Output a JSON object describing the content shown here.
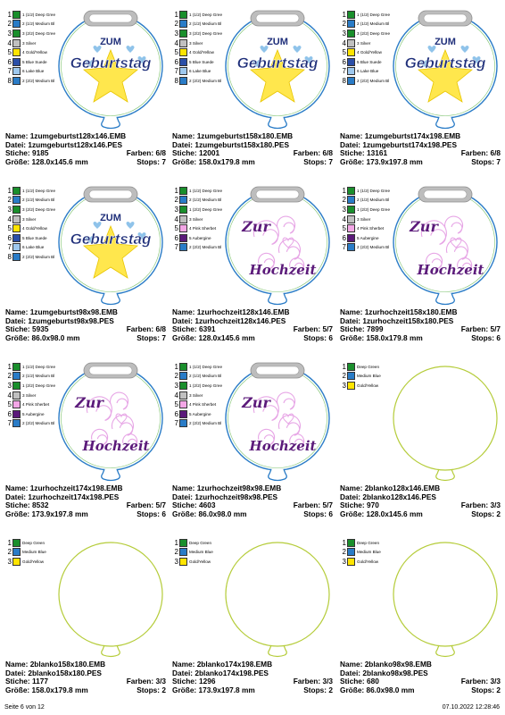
{
  "footer": {
    "page": "Seite 6 von 12",
    "datetime": "07.10.2022 12:28:46"
  },
  "cells": [
    {
      "design": "zum",
      "name": "1zumgeburtst128x146.EMB",
      "datei": "1zumgeburtst128x146.PES",
      "stiche": "9185",
      "farben": "6/8",
      "groesse": "128.0x145.6 mm",
      "stops": "7",
      "colors": [
        {
          "n": "1",
          "c": "#1a8f2c",
          "t": "1 (1/2) Deep Gree"
        },
        {
          "n": "2",
          "c": "#2a7cc7",
          "t": "2 (1/2) Medium Bl"
        },
        {
          "n": "3",
          "c": "#1a8f2c",
          "t": "3 (2/2) Deep Gree"
        },
        {
          "n": "4",
          "c": "#c0c0c0",
          "t": "3 Silver"
        },
        {
          "n": "5",
          "c": "#ffe400",
          "t": "4 Gold/Yellow"
        },
        {
          "n": "6",
          "c": "#2b4fa8",
          "t": "5 Blue Suede"
        },
        {
          "n": "7",
          "c": "#9ec8ee",
          "t": "6 Lake Blue"
        },
        {
          "n": "8",
          "c": "#2a7cc7",
          "t": "2 (2/2) Medium Bl"
        }
      ]
    },
    {
      "design": "zum",
      "name": "1zumgeburtst158x180.EMB",
      "datei": "1zumgeburtst158x180.PES",
      "stiche": "12001",
      "farben": "6/8",
      "groesse": "158.0x179.8 mm",
      "stops": "7",
      "colors": [
        {
          "n": "1",
          "c": "#1a8f2c",
          "t": "1 (1/2) Deep Gree"
        },
        {
          "n": "2",
          "c": "#2a7cc7",
          "t": "2 (1/2) Medium Bl"
        },
        {
          "n": "3",
          "c": "#1a8f2c",
          "t": "3 (2/2) Deep Gree"
        },
        {
          "n": "4",
          "c": "#c0c0c0",
          "t": "3 Silver"
        },
        {
          "n": "5",
          "c": "#ffe400",
          "t": "4 Gold/Yellow"
        },
        {
          "n": "6",
          "c": "#2b4fa8",
          "t": "5 Blue Suede"
        },
        {
          "n": "7",
          "c": "#9ec8ee",
          "t": "6 Lake Blue"
        },
        {
          "n": "8",
          "c": "#2a7cc7",
          "t": "2 (2/2) Medium Bl"
        }
      ]
    },
    {
      "design": "zum",
      "name": "1zumgeburtst174x198.EMB",
      "datei": "1zumgeburtst174x198.PES",
      "stiche": "13161",
      "farben": "6/8",
      "groesse": "173.9x197.8 mm",
      "stops": "7",
      "colors": [
        {
          "n": "1",
          "c": "#1a8f2c",
          "t": "1 (1/2) Deep Gree"
        },
        {
          "n": "2",
          "c": "#2a7cc7",
          "t": "2 (1/2) Medium Bl"
        },
        {
          "n": "3",
          "c": "#1a8f2c",
          "t": "3 (2/2) Deep Gree"
        },
        {
          "n": "4",
          "c": "#c0c0c0",
          "t": "3 Silver"
        },
        {
          "n": "5",
          "c": "#ffe400",
          "t": "4 Gold/Yellow"
        },
        {
          "n": "6",
          "c": "#2b4fa8",
          "t": "5 Blue Suede"
        },
        {
          "n": "7",
          "c": "#9ec8ee",
          "t": "6 Lake Blue"
        },
        {
          "n": "8",
          "c": "#2a7cc7",
          "t": "2 (2/2) Medium Bl"
        }
      ]
    },
    {
      "design": "zum",
      "name": "1zumgeburtst98x98.EMB",
      "datei": "1zumgeburtst98x98.PES",
      "stiche": "5935",
      "farben": "6/8",
      "groesse": "86.0x98.0 mm",
      "stops": "7",
      "colors": [
        {
          "n": "1",
          "c": "#1a8f2c",
          "t": "1 (1/2) Deep Gree"
        },
        {
          "n": "2",
          "c": "#2a7cc7",
          "t": "2 (1/2) Medium Bl"
        },
        {
          "n": "3",
          "c": "#1a8f2c",
          "t": "3 (2/2) Deep Gree"
        },
        {
          "n": "4",
          "c": "#c0c0c0",
          "t": "3 Silver"
        },
        {
          "n": "5",
          "c": "#ffe400",
          "t": "4 Gold/Yellow"
        },
        {
          "n": "6",
          "c": "#2b4fa8",
          "t": "5 Blue Suede"
        },
        {
          "n": "7",
          "c": "#9ec8ee",
          "t": "6 Lake Blue"
        },
        {
          "n": "8",
          "c": "#2a7cc7",
          "t": "2 (2/2) Medium Bl"
        }
      ]
    },
    {
      "design": "zur",
      "name": "1zurhochzeit128x146.EMB",
      "datei": "1zurhochzeit128x146.PES",
      "stiche": "6391",
      "farben": "5/7",
      "groesse": "128.0x145.6 mm",
      "stops": "6",
      "colors": [
        {
          "n": "1",
          "c": "#1a8f2c",
          "t": "1 (1/2) Deep Gree"
        },
        {
          "n": "2",
          "c": "#2a7cc7",
          "t": "2 (1/2) Medium Bl"
        },
        {
          "n": "3",
          "c": "#1a8f2c",
          "t": "1 (2/2) Deep Gree"
        },
        {
          "n": "4",
          "c": "#c0c0c0",
          "t": "3 Silver"
        },
        {
          "n": "5",
          "c": "#f3a6e6",
          "t": "4 Pink Sherbet"
        },
        {
          "n": "6",
          "c": "#5b1a7a",
          "t": "5 Aubergine"
        },
        {
          "n": "7",
          "c": "#2a7cc7",
          "t": "2 (2/2) Medium Bl"
        }
      ]
    },
    {
      "design": "zur",
      "name": "1zurhochzeit158x180.EMB",
      "datei": "1zurhochzeit158x180.PES",
      "stiche": "7899",
      "farben": "5/7",
      "groesse": "158.0x179.8 mm",
      "stops": "6",
      "colors": [
        {
          "n": "1",
          "c": "#1a8f2c",
          "t": "1 (1/2) Deep Gree"
        },
        {
          "n": "2",
          "c": "#2a7cc7",
          "t": "2 (1/2) Medium Bl"
        },
        {
          "n": "3",
          "c": "#1a8f2c",
          "t": "1 (2/2) Deep Gree"
        },
        {
          "n": "4",
          "c": "#c0c0c0",
          "t": "3 Silver"
        },
        {
          "n": "5",
          "c": "#f3a6e6",
          "t": "4 Pink Sherbet"
        },
        {
          "n": "6",
          "c": "#5b1a7a",
          "t": "5 Aubergine"
        },
        {
          "n": "7",
          "c": "#2a7cc7",
          "t": "2 (2/2) Medium Bl"
        }
      ]
    },
    {
      "design": "zur",
      "name": "1zurhochzeit174x198.EMB",
      "datei": "1zurhochzeit174x198.PES",
      "stiche": "8532",
      "farben": "5/7",
      "groesse": "173.9x197.8 mm",
      "stops": "6",
      "colors": [
        {
          "n": "1",
          "c": "#1a8f2c",
          "t": "1 (1/2) Deep Gree"
        },
        {
          "n": "2",
          "c": "#2a7cc7",
          "t": "2 (1/2) Medium Bl"
        },
        {
          "n": "3",
          "c": "#1a8f2c",
          "t": "1 (2/2) Deep Gree"
        },
        {
          "n": "4",
          "c": "#c0c0c0",
          "t": "3 Silver"
        },
        {
          "n": "5",
          "c": "#f3a6e6",
          "t": "4 Pink Sherbet"
        },
        {
          "n": "6",
          "c": "#5b1a7a",
          "t": "5 Aubergine"
        },
        {
          "n": "7",
          "c": "#2a7cc7",
          "t": "2 (2/2) Medium Bl"
        }
      ]
    },
    {
      "design": "zur",
      "name": "1zurhochzeit98x98.EMB",
      "datei": "1zurhochzeit98x98.PES",
      "stiche": "4603",
      "farben": "5/7",
      "groesse": "86.0x98.0 mm",
      "stops": "6",
      "colors": [
        {
          "n": "1",
          "c": "#1a8f2c",
          "t": "1 (1/2) Deep Gree"
        },
        {
          "n": "2",
          "c": "#2a7cc7",
          "t": "2 (1/2) Medium Bl"
        },
        {
          "n": "3",
          "c": "#1a8f2c",
          "t": "1 (2/2) Deep Gree"
        },
        {
          "n": "4",
          "c": "#c0c0c0",
          "t": "3 Silver"
        },
        {
          "n": "5",
          "c": "#f3a6e6",
          "t": "4 Pink Sherbet"
        },
        {
          "n": "6",
          "c": "#5b1a7a",
          "t": "5 Aubergine"
        },
        {
          "n": "7",
          "c": "#2a7cc7",
          "t": "2 (2/2) Medium Bl"
        }
      ]
    },
    {
      "design": "blank",
      "name": "2blanko128x146.EMB",
      "datei": "2blanko128x146.PES",
      "stiche": "970",
      "farben": "3/3",
      "groesse": "128.0x145.6 mm",
      "stops": "2",
      "colors": [
        {
          "n": "1",
          "c": "#1a8f2c",
          "t": "Deep Green"
        },
        {
          "n": "2",
          "c": "#2a7cc7",
          "t": "Medium Blue"
        },
        {
          "n": "3",
          "c": "#ffe400",
          "t": "Gold/Yellow"
        }
      ]
    },
    {
      "design": "blank",
      "name": "2blanko158x180.EMB",
      "datei": "2blanko158x180.PES",
      "stiche": "1177",
      "farben": "3/3",
      "groesse": "158.0x179.8 mm",
      "stops": "2",
      "colors": [
        {
          "n": "1",
          "c": "#1a8f2c",
          "t": "Deep Green"
        },
        {
          "n": "2",
          "c": "#2a7cc7",
          "t": "Medium Blue"
        },
        {
          "n": "3",
          "c": "#ffe400",
          "t": "Gold/Yellow"
        }
      ]
    },
    {
      "design": "blank",
      "name": "2blanko174x198.EMB",
      "datei": "2blanko174x198.PES",
      "stiche": "1296",
      "farben": "3/3",
      "groesse": "173.9x197.8 mm",
      "stops": "2",
      "colors": [
        {
          "n": "1",
          "c": "#1a8f2c",
          "t": "Deep Green"
        },
        {
          "n": "2",
          "c": "#2a7cc7",
          "t": "Medium Blue"
        },
        {
          "n": "3",
          "c": "#ffe400",
          "t": "Gold/Yellow"
        }
      ]
    },
    {
      "design": "blank",
      "name": "2blanko98x98.EMB",
      "datei": "2blanko98x98.PES",
      "stiche": "680",
      "farben": "3/3",
      "groesse": "86.0x98.0 mm",
      "stops": "2",
      "colors": [
        {
          "n": "1",
          "c": "#1a8f2c",
          "t": "Deep Green"
        },
        {
          "n": "2",
          "c": "#2a7cc7",
          "t": "Medium Blue"
        },
        {
          "n": "3",
          "c": "#ffe400",
          "t": "Gold/Yellow"
        }
      ]
    }
  ],
  "labels": {
    "name": "Name:",
    "datei": "Datei:",
    "stiche": "Stiche:",
    "farben": "Farben:",
    "groesse": "Größe:",
    "stops": "Stops:"
  },
  "artwork": {
    "zum_line1": "ZUM",
    "zum_line2": "Geburtstag",
    "zur_line1": "Zur",
    "zur_line2": "Hochzeit"
  }
}
